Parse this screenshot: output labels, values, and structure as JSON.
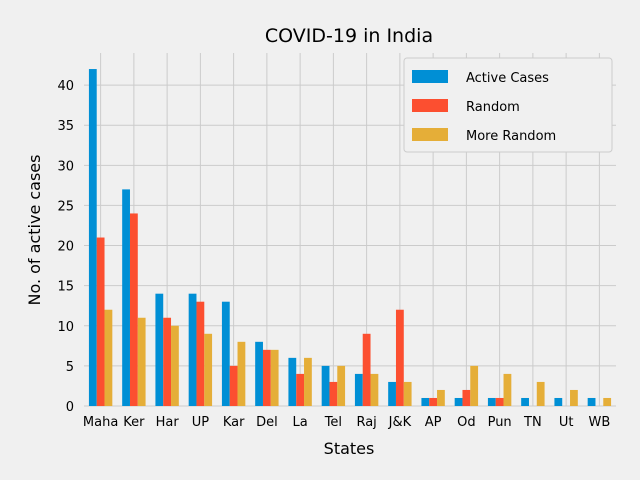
{
  "chart_data": {
    "type": "bar",
    "title": "COVID-19 in India",
    "xlabel": "States",
    "ylabel": "No. of active cases",
    "ylim": [
      0,
      44
    ],
    "yticks": [
      0,
      5,
      10,
      15,
      20,
      25,
      30,
      35,
      40
    ],
    "categories": [
      "Maha",
      "Ker",
      "Har",
      "UP",
      "Kar",
      "Del",
      "La",
      "Tel",
      "Raj",
      "J&K",
      "AP",
      "Od",
      "Pun",
      "TN",
      "Ut",
      "WB"
    ],
    "series": [
      {
        "name": "Active Cases",
        "color": "#008fd5",
        "values": [
          42,
          27,
          14,
          14,
          13,
          8,
          6,
          5,
          4,
          3,
          1,
          1,
          1,
          1,
          1,
          1
        ]
      },
      {
        "name": "Random",
        "color": "#fc4f30",
        "values": [
          21,
          24,
          11,
          13,
          5,
          7,
          4,
          3,
          9,
          12,
          1,
          2,
          1,
          0,
          0,
          0
        ]
      },
      {
        "name": "More Random",
        "color": "#e5ae38",
        "values": [
          12,
          11,
          10,
          9,
          8,
          7,
          6,
          5,
          4,
          3,
          2,
          5,
          4,
          3,
          2,
          1
        ]
      }
    ],
    "grid": true,
    "legend_position": "top-right"
  }
}
